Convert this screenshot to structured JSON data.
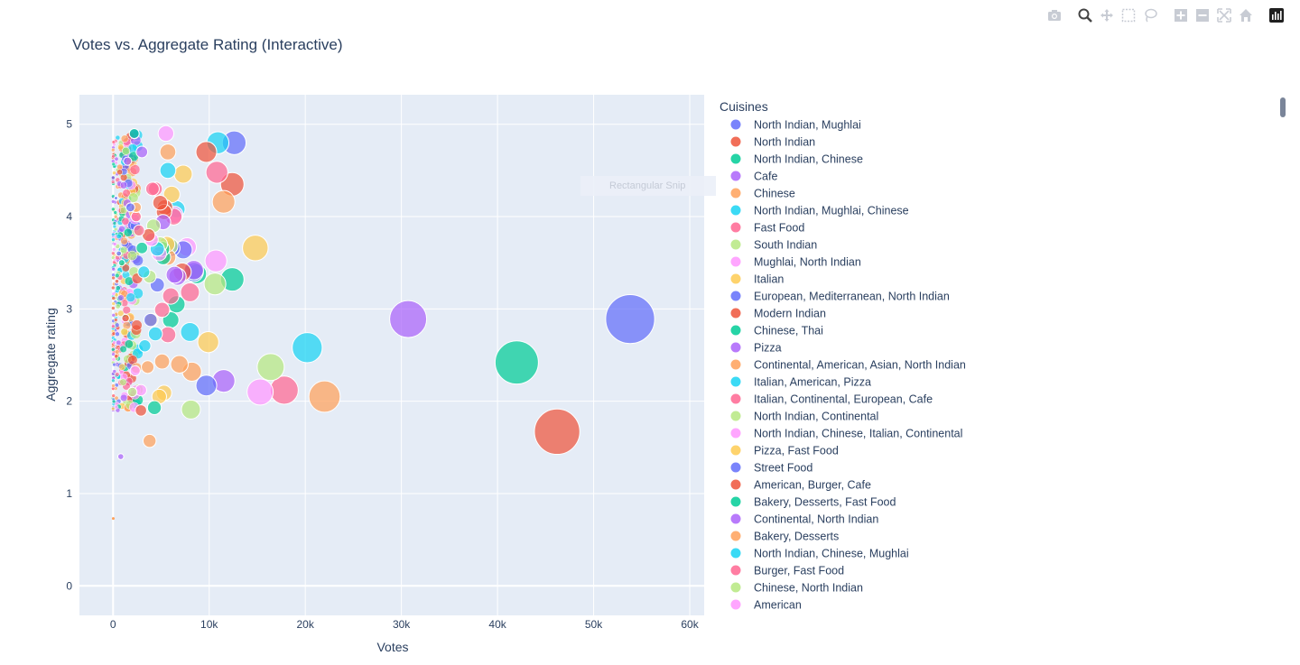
{
  "chart_data": {
    "type": "scatter",
    "title": "Votes vs. Aggregate Rating (Interactive)",
    "xlabel": "Votes",
    "ylabel": "Aggregate rating",
    "xlim": [
      -3500,
      61500
    ],
    "ylim": [
      -0.32,
      5.32
    ],
    "xticks": [
      0,
      10000,
      20000,
      30000,
      40000,
      50000,
      60000
    ],
    "xtick_labels": [
      "0",
      "10k",
      "20k",
      "30k",
      "40k",
      "50k",
      "60k"
    ],
    "yticks": [
      0,
      1,
      2,
      3,
      4,
      5
    ],
    "ytick_labels": [
      "0",
      "1",
      "2",
      "3",
      "4",
      "5"
    ],
    "grid": true,
    "marker": "bubble (size proportional to votes)",
    "legend_title": "Cuisines",
    "legend_placement": "right",
    "series": [
      {
        "name": "North Indian, Mughlai",
        "color": "#636efa",
        "points": [
          [
            53800,
            2.89
          ],
          [
            12600,
            4.8
          ],
          [
            8400,
            3.4
          ],
          [
            1800,
            4.1
          ],
          [
            600,
            3.6
          ],
          [
            300,
            4.2
          ]
        ]
      },
      {
        "name": "North Indian",
        "color": "#EF553B",
        "points": [
          [
            46200,
            1.67
          ],
          [
            12400,
            4.35
          ],
          [
            9700,
            4.7
          ],
          [
            5400,
            4.1
          ],
          [
            2900,
            1.9
          ],
          [
            1300,
            2.9
          ],
          [
            400,
            3.3
          ]
        ]
      },
      {
        "name": "North Indian, Chinese",
        "color": "#00cc96",
        "points": [
          [
            42000,
            2.42
          ],
          [
            12400,
            3.32
          ],
          [
            6600,
            3.05
          ],
          [
            4300,
            1.93
          ],
          [
            2200,
            4.9
          ],
          [
            900,
            3.5
          ]
        ]
      },
      {
        "name": "Cafe",
        "color": "#ab63fa",
        "points": [
          [
            30700,
            2.89
          ],
          [
            11500,
            2.22
          ],
          [
            800,
            1.4
          ],
          [
            1500,
            4.6
          ]
        ]
      },
      {
        "name": "Chinese",
        "color": "#FFA15A",
        "points": [
          [
            22000,
            2.05
          ],
          [
            11500,
            4.16
          ],
          [
            8200,
            2.32
          ],
          [
            3800,
            1.57
          ],
          [
            5700,
            4.7
          ]
        ]
      },
      {
        "name": "North Indian, Mughlai, Chinese",
        "color": "#19d3f3",
        "points": [
          [
            20200,
            2.58
          ],
          [
            10900,
            4.8
          ],
          [
            8000,
            2.75
          ],
          [
            5700,
            4.5
          ],
          [
            3300,
            2.6
          ]
        ]
      },
      {
        "name": "Fast Food",
        "color": "#FF6692",
        "points": [
          [
            17800,
            2.12
          ],
          [
            10800,
            4.48
          ],
          [
            8000,
            3.18
          ],
          [
            5700,
            2.72
          ],
          [
            6000,
            3.14
          ],
          [
            2400,
            4.0
          ]
        ]
      },
      {
        "name": "South Indian",
        "color": "#B6E880",
        "points": [
          [
            16400,
            2.37
          ],
          [
            10600,
            3.27
          ],
          [
            8100,
            1.91
          ],
          [
            4900,
            3.7
          ]
        ]
      },
      {
        "name": "Mughlai, North Indian",
        "color": "#FF97FF",
        "points": [
          [
            15300,
            2.1
          ],
          [
            10700,
            3.52
          ],
          [
            5500,
            4.9
          ],
          [
            7700,
            3.67
          ],
          [
            2900,
            2.12
          ]
        ]
      },
      {
        "name": "Italian",
        "color": "#FECB52",
        "points": [
          [
            14800,
            3.66
          ],
          [
            9900,
            2.64
          ],
          [
            7300,
            4.46
          ],
          [
            6100,
            4.24
          ],
          [
            5300,
            2.09
          ],
          [
            4800,
            2.05
          ]
        ]
      },
      {
        "name": "European, Mediterranean, North Indian",
        "color": "#636efa",
        "points": [
          [
            9700,
            2.17
          ],
          [
            7300,
            3.64
          ],
          [
            4600,
            3.26
          ]
        ]
      },
      {
        "name": "Modern Indian",
        "color": "#EF553B",
        "points": [
          [
            7200,
            3.4
          ],
          [
            5300,
            4.05
          ]
        ]
      },
      {
        "name": "Chinese, Thai",
        "color": "#00cc96",
        "points": [
          [
            8700,
            3.38
          ],
          [
            6000,
            2.88
          ],
          [
            5200,
            3.56
          ]
        ]
      },
      {
        "name": "Pizza",
        "color": "#ab63fa",
        "points": [
          [
            8400,
            3.42
          ],
          [
            6700,
            3.35
          ],
          [
            5200,
            3.94
          ]
        ]
      },
      {
        "name": "Continental, American, Asian, North Indian",
        "color": "#FFA15A",
        "points": [
          [
            6900,
            2.4
          ],
          [
            5100,
            2.43
          ],
          [
            3600,
            2.37
          ]
        ]
      },
      {
        "name": "Italian, American, Pizza",
        "color": "#19d3f3",
        "points": [
          [
            6600,
            4.08
          ],
          [
            4400,
            2.73
          ]
        ]
      },
      {
        "name": "Italian, Continental, European, Cafe",
        "color": "#FF6692",
        "points": [
          [
            6300,
            4.0
          ],
          [
            5100,
            2.99
          ],
          [
            4400,
            4.3
          ]
        ]
      },
      {
        "name": "North Indian, Continental",
        "color": "#B6E880",
        "points": [
          [
            5900,
            3.68
          ],
          [
            4200,
            3.9
          ]
        ]
      },
      {
        "name": "North Indian, Chinese, Italian, Continental",
        "color": "#FF97FF",
        "points": [
          [
            6400,
            4.02
          ],
          [
            4800,
            3.6
          ]
        ]
      },
      {
        "name": "Pizza, Fast Food",
        "color": "#FECB52",
        "points": [
          [
            5600,
            3.7
          ],
          [
            4000,
            2.88
          ]
        ]
      },
      {
        "name": "Street Food",
        "color": "#636efa",
        "points": [
          [
            6100,
            3.66
          ],
          [
            3900,
            2.88
          ]
        ]
      },
      {
        "name": "American, Burger, Cafe",
        "color": "#EF553B",
        "points": [
          [
            4900,
            4.15
          ],
          [
            3700,
            3.8
          ]
        ]
      },
      {
        "name": "Bakery, Desserts, Fast Food",
        "color": "#00cc96",
        "points": [
          [
            5100,
            3.65
          ],
          [
            3000,
            3.66
          ]
        ]
      },
      {
        "name": "Continental, North Indian",
        "color": "#ab63fa",
        "points": [
          [
            6400,
            3.37
          ],
          [
            3000,
            4.7
          ]
        ]
      },
      {
        "name": "Bakery, Desserts",
        "color": "#FFA15A",
        "points": [
          [
            5700,
            3.56
          ],
          [
            2400,
            4.1
          ]
        ]
      },
      {
        "name": "North Indian, Chinese, Mughlai",
        "color": "#19d3f3",
        "points": [
          [
            4600,
            3.65
          ],
          [
            3200,
            3.4
          ]
        ]
      },
      {
        "name": "Burger, Fast Food",
        "color": "#FF6692",
        "points": [
          [
            4100,
            4.3
          ],
          [
            2700,
            3.85
          ]
        ]
      },
      {
        "name": "Chinese, North Indian",
        "color": "#B6E880",
        "points": [
          [
            3800,
            3.35
          ],
          [
            2000,
            2.1
          ]
        ]
      },
      {
        "name": "American",
        "color": "#FF97FF",
        "points": [
          [
            4000,
            3.75
          ],
          [
            2300,
            2.33
          ]
        ]
      }
    ]
  },
  "snip_label": "Rectangular Snip",
  "modebar": {
    "buttons": [
      "camera-icon",
      "zoom-icon",
      "pan-icon",
      "box-select-icon",
      "lasso-icon",
      "zoom-in-icon",
      "zoom-out-icon",
      "autoscale-icon",
      "reset-axes-icon",
      "plotly-logo-icon"
    ]
  }
}
